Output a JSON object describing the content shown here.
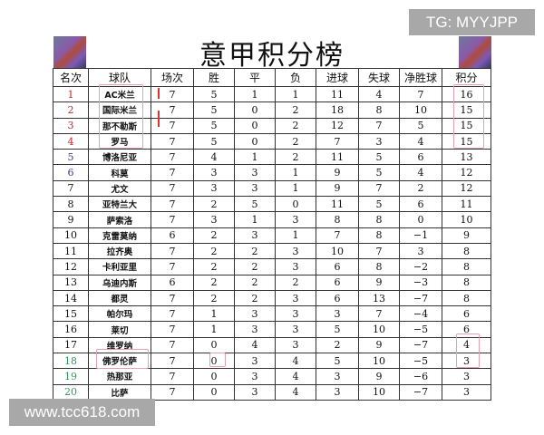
{
  "watermarks": {
    "top": "TG: MYYJPP",
    "bottom": "www.tcc618.com"
  },
  "title": "意甲积分榜",
  "headers": [
    "名次",
    "球队",
    "场次",
    "胜",
    "平",
    "负",
    "进球",
    "失球",
    "净胜球",
    "积分"
  ],
  "colors": {
    "top4": "#c0282d",
    "europa": "#3a3a8a",
    "relegation": "#2e9a5a",
    "highlight_box": "#e8a0b0",
    "arrow": "#d33333"
  },
  "rows": [
    [
      "1",
      "AC米兰",
      "7",
      "5",
      "1",
      "1",
      "11",
      "4",
      "7",
      "16"
    ],
    [
      "2",
      "国际米兰",
      "7",
      "5",
      "0",
      "2",
      "18",
      "8",
      "10",
      "15"
    ],
    [
      "3",
      "那不勒斯",
      "7",
      "5",
      "0",
      "2",
      "12",
      "7",
      "5",
      "15"
    ],
    [
      "4",
      "罗马",
      "7",
      "5",
      "0",
      "2",
      "7",
      "3",
      "4",
      "15"
    ],
    [
      "5",
      "博洛尼亚",
      "7",
      "4",
      "1",
      "2",
      "11",
      "5",
      "6",
      "13"
    ],
    [
      "6",
      "科莫",
      "7",
      "3",
      "3",
      "1",
      "9",
      "5",
      "4",
      "12"
    ],
    [
      "7",
      "尤文",
      "7",
      "3",
      "3",
      "1",
      "9",
      "7",
      "2",
      "12"
    ],
    [
      "8",
      "亚特兰大",
      "7",
      "2",
      "5",
      "0",
      "11",
      "5",
      "6",
      "11"
    ],
    [
      "9",
      "萨索洛",
      "7",
      "3",
      "1",
      "3",
      "8",
      "8",
      "0",
      "10"
    ],
    [
      "10",
      "克雷莫纳",
      "6",
      "2",
      "3",
      "1",
      "7",
      "8",
      "−1",
      "9"
    ],
    [
      "11",
      "拉齐奥",
      "7",
      "2",
      "2",
      "3",
      "10",
      "7",
      "3",
      "8"
    ],
    [
      "12",
      "卡利亚里",
      "7",
      "2",
      "2",
      "3",
      "6",
      "8",
      "−2",
      "8"
    ],
    [
      "13",
      "乌迪内斯",
      "6",
      "2",
      "2",
      "2",
      "6",
      "9",
      "−3",
      "8"
    ],
    [
      "14",
      "都灵",
      "7",
      "2",
      "2",
      "3",
      "6",
      "13",
      "−7",
      "8"
    ],
    [
      "15",
      "帕尔玛",
      "7",
      "1",
      "3",
      "3",
      "3",
      "7",
      "−4",
      "6"
    ],
    [
      "16",
      "莱切",
      "7",
      "1",
      "3",
      "3",
      "5",
      "10",
      "−5",
      "6"
    ],
    [
      "17",
      "维罗纳",
      "7",
      "0",
      "4",
      "3",
      "2",
      "9",
      "−7",
      "4"
    ],
    [
      "18",
      "佛罗伦萨",
      "7",
      "0",
      "3",
      "4",
      "5",
      "10",
      "−5",
      "3"
    ],
    [
      "19",
      "热那亚",
      "7",
      "0",
      "3",
      "4",
      "3",
      "9",
      "−6",
      "3"
    ],
    [
      "20",
      "比萨",
      "7",
      "0",
      "3",
      "4",
      "3",
      "10",
      "−7",
      "3"
    ]
  ]
}
